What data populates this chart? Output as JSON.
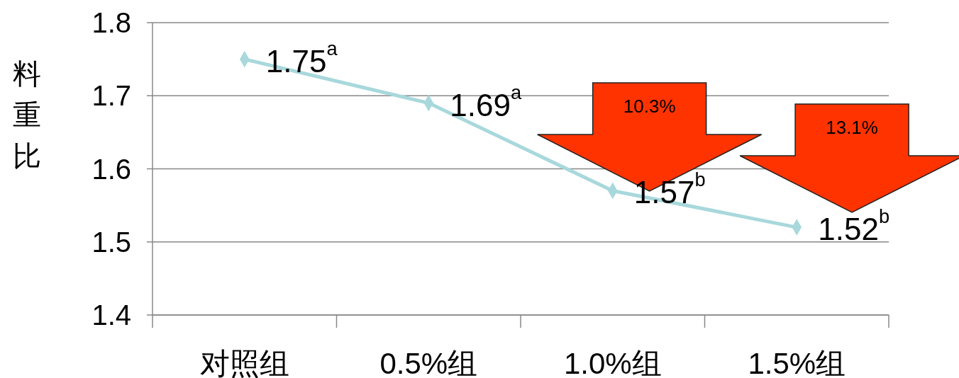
{
  "chart_data": {
    "type": "line",
    "ylabel": "料重比",
    "categories": [
      "对照组",
      "0.5%组",
      "1.0%组",
      "1.5%组"
    ],
    "series": [
      {
        "color": "#a8d8dc",
        "values": [
          1.75,
          1.69,
          1.57,
          1.52
        ],
        "value_labels": [
          "1.75$^{a}$",
          "1.69$^{a}$",
          "1.57$^{b}$",
          "1.52$^{b}$"
        ]
      }
    ],
    "ylim": [
      1.4,
      1.8
    ],
    "yticks": [
      1.4,
      1.5,
      1.6,
      1.7,
      1.8
    ],
    "grid": "y",
    "marker": "diamond",
    "line_style": "solid",
    "annotations": [
      "10.3%",
      "13.1%"
    ]
  }
}
